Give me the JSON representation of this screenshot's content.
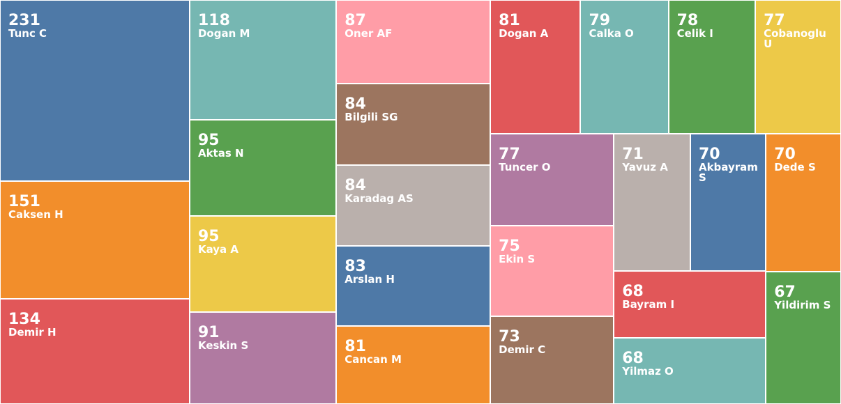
{
  "chart_data": {
    "type": "treemap",
    "categories": [
      "Tunc C",
      "Caksen H",
      "Demir H",
      "Dogan M",
      "Aktas N",
      "Kaya A",
      "Keskin S",
      "Oner AF",
      "Bilgili SG",
      "Karadag AS",
      "Arslan H",
      "Cancan M",
      "Dogan A",
      "Calka O",
      "Celik I",
      "Cobanoglu U",
      "Tuncer O",
      "Ekin S",
      "Demir C",
      "Yavuz A",
      "Akbayram S",
      "Dede S",
      "Bayram I",
      "Yilmaz O",
      "Yildirim S"
    ],
    "values": [
      231,
      151,
      134,
      118,
      95,
      95,
      91,
      87,
      84,
      84,
      83,
      81,
      81,
      79,
      78,
      77,
      77,
      75,
      73,
      71,
      70,
      70,
      68,
      68,
      67
    ],
    "colors": [
      "#4e79a7",
      "#f28e2b",
      "#e15759",
      "#76b7b2",
      "#59a14f",
      "#edc948",
      "#b07aa1",
      "#ff9da7",
      "#9c755f",
      "#bab0ac",
      "#4e79a7",
      "#f28e2b",
      "#e15759",
      "#76b7b2",
      "#59a14f",
      "#edc948",
      "#b07aa1",
      "#ff9da7",
      "#9c755f",
      "#bab0ac",
      "#4e79a7",
      "#f28e2b",
      "#e15759",
      "#76b7b2",
      "#59a14f"
    ]
  }
}
